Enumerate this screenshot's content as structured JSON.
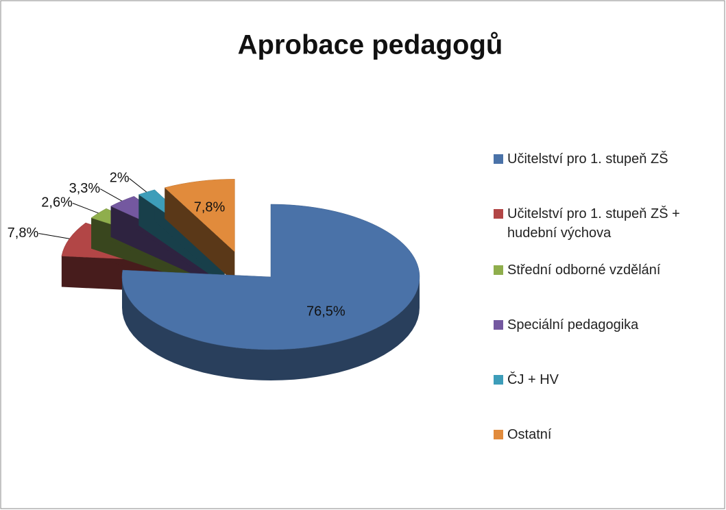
{
  "chart_data": {
    "type": "pie",
    "title": "Aprobace pedagogů",
    "categories": [
      "Učitelství pro 1. stupeň ZŠ",
      "Učitelství pro 1. stupeň ZŠ + hudební výchova",
      "Střední odborné vzdělání",
      "Speciální pedagogika",
      "ČJ + HV",
      "Ostatní"
    ],
    "values": [
      76.5,
      7.8,
      2.6,
      3.3,
      2,
      7.8
    ],
    "value_labels": [
      "76,5%",
      "7,8%",
      "2,6%",
      "3,3%",
      "2%",
      "7,8%"
    ],
    "colors": [
      "#4a72a8",
      "#b24646",
      "#8fae4c",
      "#7458a0",
      "#3d9db9",
      "#e18b3c"
    ],
    "legend": "right"
  }
}
